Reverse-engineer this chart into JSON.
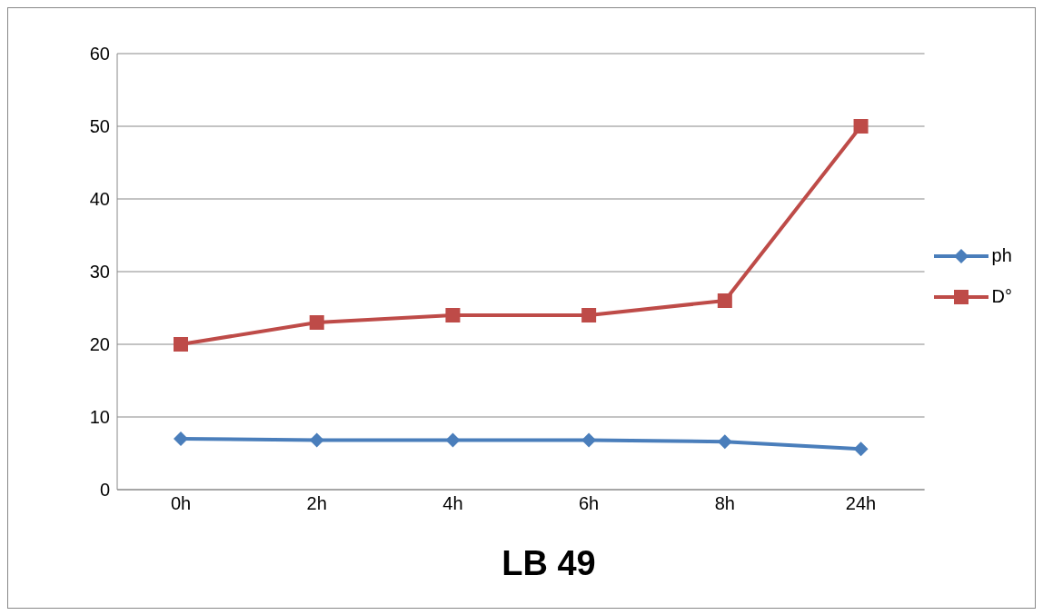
{
  "chart_data": {
    "type": "line",
    "title": "LB 49",
    "categories": [
      "0h",
      "2h",
      "4h",
      "6h",
      "8h",
      "24h"
    ],
    "series": [
      {
        "name": "ph",
        "color": "#4a7ebb",
        "marker": "diamond",
        "values": [
          7.0,
          6.8,
          6.8,
          6.8,
          6.6,
          5.6
        ]
      },
      {
        "name": "D°",
        "color": "#be4b48",
        "marker": "square",
        "values": [
          20,
          23,
          24,
          24,
          26,
          50
        ]
      }
    ],
    "ylim": [
      0,
      60
    ],
    "yticks": [
      0,
      10,
      20,
      30,
      40,
      50,
      60
    ],
    "grid": "y",
    "legend": "right"
  }
}
